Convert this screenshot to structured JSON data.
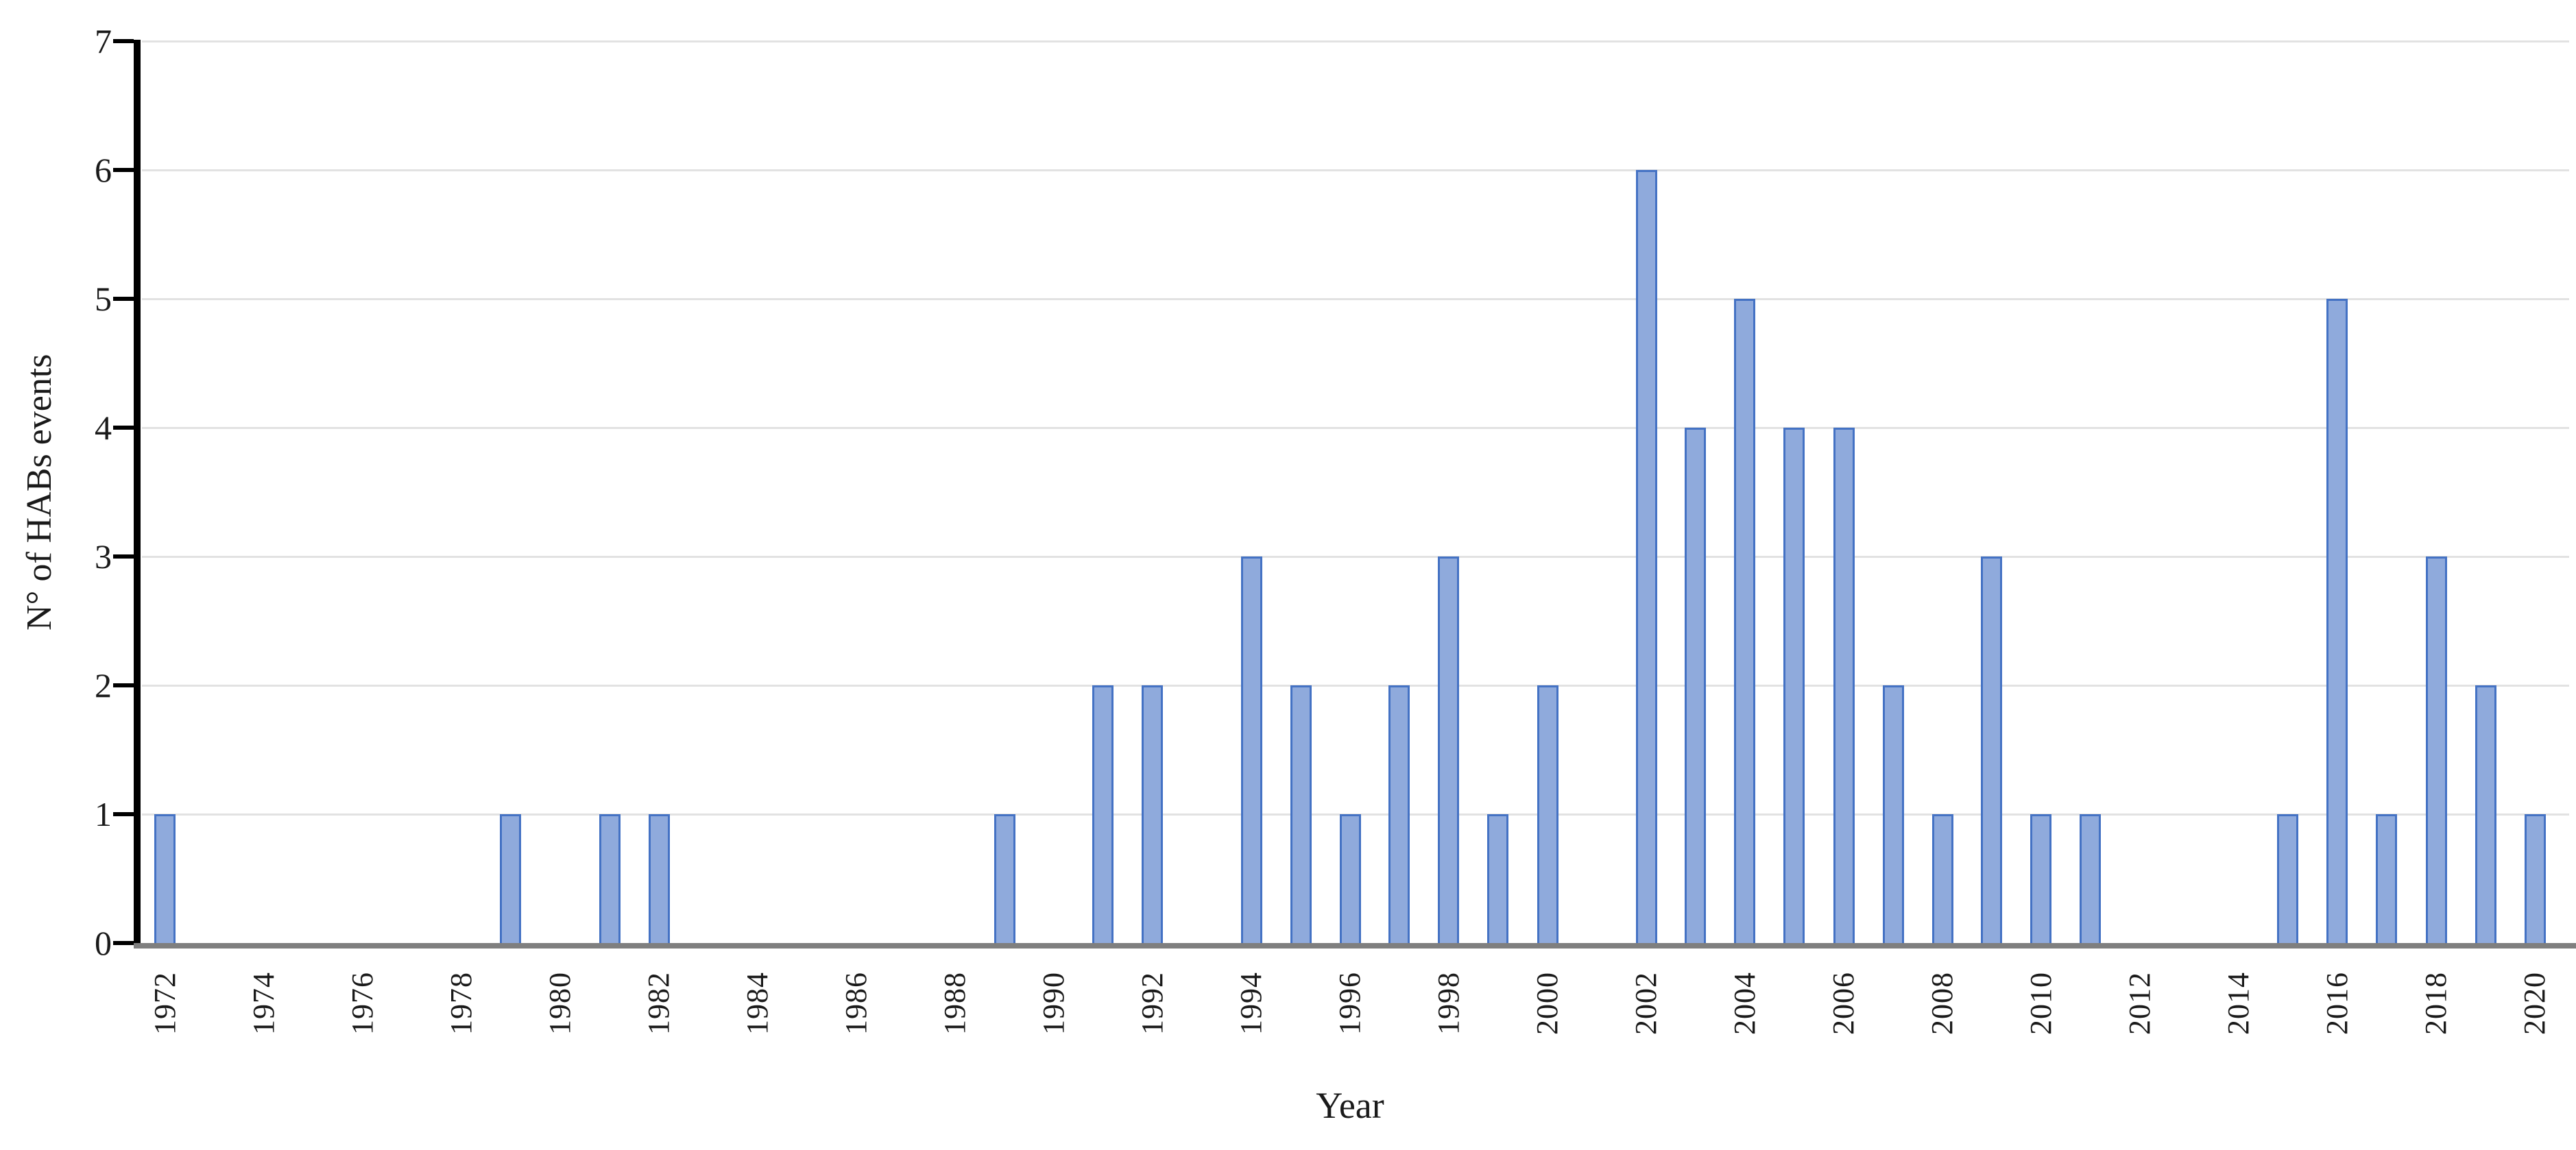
{
  "figure": {
    "x_axis_title": "Year",
    "y_axis_title": "N° of HABs events"
  },
  "chart_data": {
    "type": "bar",
    "title": "",
    "xlabel": "Year",
    "ylabel": "N° of HABs events",
    "ylim": [
      0,
      7
    ],
    "yticks": [
      0,
      1,
      2,
      3,
      4,
      5,
      6,
      7
    ],
    "grid": true,
    "legend_position": "none",
    "categories": [
      1972,
      1973,
      1974,
      1975,
      1976,
      1977,
      1978,
      1979,
      1980,
      1981,
      1982,
      1983,
      1984,
      1985,
      1986,
      1987,
      1988,
      1989,
      1990,
      1991,
      1992,
      1993,
      1994,
      1995,
      1996,
      1997,
      1998,
      1999,
      2000,
      2001,
      2002,
      2003,
      2004,
      2005,
      2006,
      2007,
      2008,
      2009,
      2010,
      2011,
      2012,
      2013,
      2014,
      2015,
      2016,
      2017,
      2018,
      2019,
      2020
    ],
    "values": [
      1,
      0,
      0,
      0,
      0,
      0,
      0,
      1,
      0,
      1,
      1,
      0,
      0,
      0,
      0,
      0,
      0,
      1,
      0,
      2,
      2,
      0,
      3,
      2,
      1,
      2,
      3,
      1,
      2,
      0,
      6,
      4,
      5,
      4,
      4,
      2,
      1,
      3,
      1,
      1,
      0,
      0,
      0,
      1,
      5,
      1,
      3,
      2,
      1
    ],
    "x_tick_label_years": [
      1972,
      1974,
      1976,
      1978,
      1980,
      1982,
      1984,
      1986,
      1988,
      1990,
      1992,
      1994,
      1996,
      1998,
      2000,
      2002,
      2004,
      2006,
      2008,
      2010,
      2012,
      2014,
      2016,
      2018,
      2020
    ],
    "colors": {
      "bar_fill": "#8FAADC",
      "bar_border": "#4472C4",
      "gridline": "#E2E2E2",
      "x_axis_line": "#7F7F7F",
      "y_axis_line": "#000000",
      "tick_text": "#1A1A1A"
    }
  }
}
